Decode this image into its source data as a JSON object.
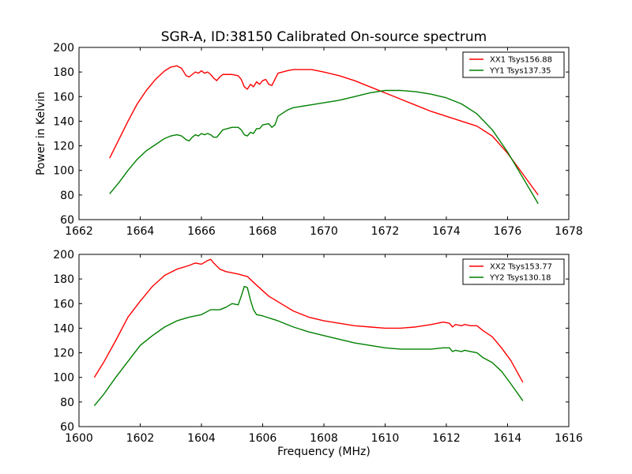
{
  "chart_data": [
    {
      "type": "line",
      "title": "SGR-A, ID:38150 Calibrated On-source spectrum",
      "xlabel": "",
      "ylabel": "Power in Kelvin",
      "xlim": [
        1662,
        1678
      ],
      "ylim": [
        60,
        200
      ],
      "xticks": [
        1662,
        1664,
        1666,
        1668,
        1670,
        1672,
        1674,
        1676,
        1678
      ],
      "yticks": [
        60,
        80,
        100,
        120,
        140,
        160,
        180,
        200
      ],
      "legend_position": "top-right",
      "series": [
        {
          "name": "XX1 Tsys156.88",
          "color": "#ff0000",
          "points": [
            [
              1663.0,
              110
            ],
            [
              1663.3,
              125
            ],
            [
              1663.6,
              140
            ],
            [
              1663.9,
              154
            ],
            [
              1664.2,
              165
            ],
            [
              1664.5,
              174
            ],
            [
              1664.8,
              181
            ],
            [
              1665.0,
              184
            ],
            [
              1665.2,
              185
            ],
            [
              1665.35,
              183
            ],
            [
              1665.5,
              177
            ],
            [
              1665.6,
              176
            ],
            [
              1665.7,
              178
            ],
            [
              1665.8,
              180
            ],
            [
              1665.9,
              179
            ],
            [
              1666.0,
              181
            ],
            [
              1666.1,
              179
            ],
            [
              1666.2,
              180
            ],
            [
              1666.3,
              178
            ],
            [
              1666.4,
              175
            ],
            [
              1666.5,
              173
            ],
            [
              1666.6,
              176
            ],
            [
              1666.7,
              178
            ],
            [
              1667.0,
              178
            ],
            [
              1667.2,
              177
            ],
            [
              1667.3,
              174
            ],
            [
              1667.4,
              168
            ],
            [
              1667.5,
              166
            ],
            [
              1667.6,
              170
            ],
            [
              1667.7,
              168
            ],
            [
              1667.8,
              172
            ],
            [
              1667.9,
              170
            ],
            [
              1668.0,
              173
            ],
            [
              1668.1,
              174
            ],
            [
              1668.2,
              170
            ],
            [
              1668.3,
              169
            ],
            [
              1668.4,
              174
            ],
            [
              1668.5,
              179
            ],
            [
              1668.8,
              181
            ],
            [
              1669.0,
              182
            ],
            [
              1669.3,
              182
            ],
            [
              1669.6,
              182
            ],
            [
              1670.0,
              180
            ],
            [
              1670.5,
              177
            ],
            [
              1671.0,
              173
            ],
            [
              1671.5,
              168
            ],
            [
              1672.0,
              163
            ],
            [
              1672.5,
              158
            ],
            [
              1673.0,
              153
            ],
            [
              1673.5,
              148
            ],
            [
              1674.0,
              144
            ],
            [
              1674.5,
              140
            ],
            [
              1675.0,
              136
            ],
            [
              1675.5,
              128
            ],
            [
              1676.0,
              114
            ],
            [
              1676.5,
              97
            ],
            [
              1677.0,
              80
            ]
          ]
        },
        {
          "name": "YY1 Tsys137.35",
          "color": "#008000",
          "points": [
            [
              1663.0,
              81
            ],
            [
              1663.3,
              90
            ],
            [
              1663.6,
              100
            ],
            [
              1663.9,
              109
            ],
            [
              1664.2,
              116
            ],
            [
              1664.5,
              121
            ],
            [
              1664.8,
              126
            ],
            [
              1665.0,
              128
            ],
            [
              1665.2,
              129
            ],
            [
              1665.35,
              128
            ],
            [
              1665.5,
              125
            ],
            [
              1665.6,
              124
            ],
            [
              1665.7,
              127
            ],
            [
              1665.8,
              129
            ],
            [
              1665.9,
              128
            ],
            [
              1666.0,
              130
            ],
            [
              1666.1,
              129
            ],
            [
              1666.2,
              130
            ],
            [
              1666.3,
              129
            ],
            [
              1666.4,
              127
            ],
            [
              1666.5,
              127
            ],
            [
              1666.6,
              130
            ],
            [
              1666.7,
              133
            ],
            [
              1667.0,
              135
            ],
            [
              1667.2,
              135
            ],
            [
              1667.3,
              133
            ],
            [
              1667.4,
              129
            ],
            [
              1667.5,
              128
            ],
            [
              1667.6,
              131
            ],
            [
              1667.7,
              130
            ],
            [
              1667.8,
              134
            ],
            [
              1667.9,
              134
            ],
            [
              1668.0,
              137
            ],
            [
              1668.2,
              138
            ],
            [
              1668.3,
              135
            ],
            [
              1668.4,
              137
            ],
            [
              1668.5,
              144
            ],
            [
              1668.8,
              149
            ],
            [
              1669.0,
              151
            ],
            [
              1669.5,
              153
            ],
            [
              1670.0,
              155
            ],
            [
              1670.5,
              157
            ],
            [
              1671.0,
              160
            ],
            [
              1671.5,
              163
            ],
            [
              1672.0,
              165
            ],
            [
              1672.5,
              165
            ],
            [
              1673.0,
              164
            ],
            [
              1673.5,
              162
            ],
            [
              1674.0,
              159
            ],
            [
              1674.5,
              154
            ],
            [
              1675.0,
              146
            ],
            [
              1675.5,
              133
            ],
            [
              1676.0,
              115
            ],
            [
              1676.5,
              94
            ],
            [
              1677.0,
              73
            ]
          ]
        }
      ]
    },
    {
      "type": "line",
      "title": "",
      "xlabel": "Frequency (MHz)",
      "ylabel": "",
      "xlim": [
        1600,
        1616
      ],
      "ylim": [
        60,
        200
      ],
      "xticks": [
        1600,
        1602,
        1604,
        1606,
        1608,
        1610,
        1612,
        1614,
        1616
      ],
      "yticks": [
        60,
        80,
        100,
        120,
        140,
        160,
        180,
        200
      ],
      "legend_position": "top-right",
      "series": [
        {
          "name": "XX2 Tsys153.77",
          "color": "#ff0000",
          "points": [
            [
              1600.5,
              100
            ],
            [
              1600.8,
              112
            ],
            [
              1601.2,
              130
            ],
            [
              1601.6,
              149
            ],
            [
              1602.0,
              162
            ],
            [
              1602.4,
              174
            ],
            [
              1602.8,
              183
            ],
            [
              1603.2,
              188
            ],
            [
              1603.6,
              191
            ],
            [
              1603.8,
              193
            ],
            [
              1604.0,
              192
            ],
            [
              1604.2,
              195
            ],
            [
              1604.3,
              196
            ],
            [
              1604.4,
              193
            ],
            [
              1604.6,
              188
            ],
            [
              1604.8,
              186
            ],
            [
              1605.0,
              185
            ],
            [
              1605.2,
              184
            ],
            [
              1605.5,
              182
            ],
            [
              1605.8,
              175
            ],
            [
              1606.2,
              166
            ],
            [
              1606.6,
              160
            ],
            [
              1607.0,
              154
            ],
            [
              1607.5,
              149
            ],
            [
              1608.0,
              146
            ],
            [
              1608.5,
              144
            ],
            [
              1609.0,
              142
            ],
            [
              1609.5,
              141
            ],
            [
              1610.0,
              140
            ],
            [
              1610.5,
              140
            ],
            [
              1611.0,
              141
            ],
            [
              1611.5,
              143
            ],
            [
              1611.9,
              145
            ],
            [
              1612.1,
              144
            ],
            [
              1612.2,
              141
            ],
            [
              1612.3,
              143
            ],
            [
              1612.5,
              142
            ],
            [
              1612.6,
              143
            ],
            [
              1612.8,
              142
            ],
            [
              1613.0,
              142
            ],
            [
              1613.2,
              138
            ],
            [
              1613.5,
              133
            ],
            [
              1613.8,
              124
            ],
            [
              1614.1,
              114
            ],
            [
              1614.5,
              96
            ]
          ]
        },
        {
          "name": "YY2 Tsys130.18",
          "color": "#008000",
          "points": [
            [
              1600.5,
              77
            ],
            [
              1600.8,
              86
            ],
            [
              1601.2,
              100
            ],
            [
              1601.6,
              113
            ],
            [
              1602.0,
              126
            ],
            [
              1602.4,
              134
            ],
            [
              1602.8,
              141
            ],
            [
              1603.2,
              146
            ],
            [
              1603.6,
              149
            ],
            [
              1604.0,
              151
            ],
            [
              1604.3,
              155
            ],
            [
              1604.6,
              155
            ],
            [
              1604.8,
              157
            ],
            [
              1605.0,
              160
            ],
            [
              1605.2,
              159
            ],
            [
              1605.3,
              166
            ],
            [
              1605.4,
              174
            ],
            [
              1605.5,
              173
            ],
            [
              1605.6,
              163
            ],
            [
              1605.7,
              155
            ],
            [
              1605.8,
              151
            ],
            [
              1606.0,
              150
            ],
            [
              1606.5,
              146
            ],
            [
              1607.0,
              141
            ],
            [
              1607.5,
              137
            ],
            [
              1608.0,
              134
            ],
            [
              1608.5,
              131
            ],
            [
              1609.0,
              128
            ],
            [
              1609.5,
              126
            ],
            [
              1610.0,
              124
            ],
            [
              1610.5,
              123
            ],
            [
              1611.0,
              123
            ],
            [
              1611.5,
              123
            ],
            [
              1611.9,
              124
            ],
            [
              1612.1,
              124
            ],
            [
              1612.2,
              121
            ],
            [
              1612.3,
              122
            ],
            [
              1612.5,
              121
            ],
            [
              1612.6,
              122
            ],
            [
              1612.8,
              121
            ],
            [
              1613.0,
              120
            ],
            [
              1613.2,
              116
            ],
            [
              1613.5,
              112
            ],
            [
              1613.8,
              105
            ],
            [
              1614.1,
              95
            ],
            [
              1614.5,
              81
            ]
          ]
        }
      ]
    }
  ]
}
